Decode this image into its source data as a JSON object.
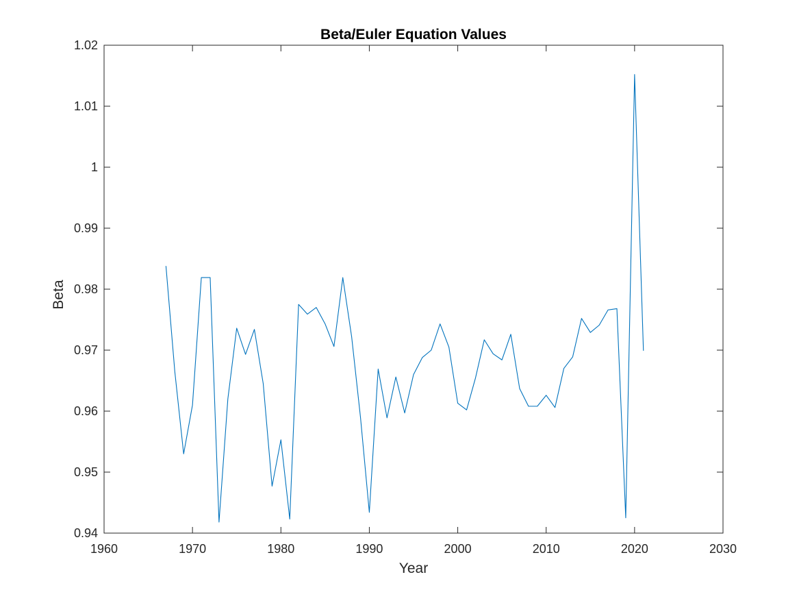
{
  "chart_data": {
    "type": "line",
    "title": "Beta/Euler Equation Values",
    "xlabel": "Year",
    "ylabel": "Beta",
    "xlim": [
      1960,
      2030
    ],
    "ylim": [
      0.94,
      1.02
    ],
    "xticks": [
      1960,
      1970,
      1980,
      1990,
      2000,
      2010,
      2020,
      2030
    ],
    "xtick_labels": [
      "1960",
      "1970",
      "1980",
      "1990",
      "2000",
      "2010",
      "2020",
      "2030"
    ],
    "yticks": [
      0.94,
      0.95,
      0.96,
      0.97,
      0.98,
      0.99,
      1.0,
      1.01,
      1.02
    ],
    "ytick_labels": [
      "0.94",
      "0.95",
      "0.96",
      "0.97",
      "0.98",
      "0.99",
      "1",
      "1.01",
      "1.02"
    ],
    "grid": false,
    "legend": "none",
    "line_color": "#0072BD",
    "x": [
      1967,
      1968,
      1969,
      1970,
      1971,
      1972,
      1973,
      1974,
      1975,
      1976,
      1977,
      1978,
      1979,
      1980,
      1981,
      1982,
      1983,
      1984,
      1985,
      1986,
      1987,
      1988,
      1989,
      1990,
      1991,
      1992,
      1993,
      1994,
      1995,
      1996,
      1997,
      1998,
      1999,
      2000,
      2001,
      2002,
      2003,
      2004,
      2005,
      2006,
      2007,
      2008,
      2009,
      2010,
      2011,
      2012,
      2013,
      2014,
      2015,
      2016,
      2017,
      2018,
      2019,
      2020,
      2021
    ],
    "y": [
      0.9838,
      0.9665,
      0.953,
      0.961,
      0.9819,
      0.9819,
      0.9418,
      0.962,
      0.9736,
      0.9693,
      0.9734,
      0.9645,
      0.9477,
      0.9553,
      0.9423,
      0.9775,
      0.9759,
      0.977,
      0.9743,
      0.9706,
      0.9819,
      0.9722,
      0.959,
      0.9434,
      0.9669,
      0.9589,
      0.9656,
      0.9597,
      0.966,
      0.9688,
      0.97,
      0.9743,
      0.9705,
      0.9613,
      0.9602,
      0.9654,
      0.9717,
      0.9694,
      0.9684,
      0.9726,
      0.9637,
      0.9608,
      0.9608,
      0.9626,
      0.9606,
      0.967,
      0.9689,
      0.9752,
      0.9729,
      0.9741,
      0.9766,
      0.9768,
      0.9425,
      1.0152,
      0.9699
    ]
  }
}
